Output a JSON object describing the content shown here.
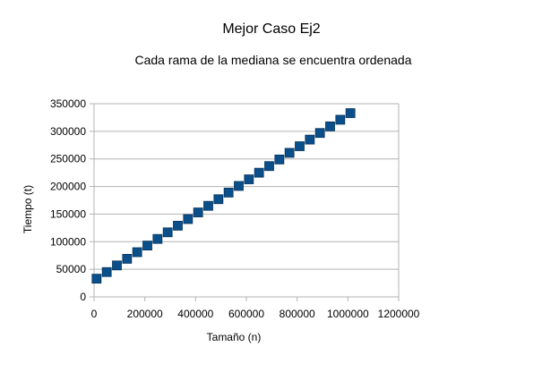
{
  "chart_data": {
    "type": "scatter",
    "title": "Mejor Caso Ej2",
    "subtitle": "Cada rama de la mediana se encuentra ordenada",
    "xlabel": "Tamaño (n)",
    "ylabel": "Tiempo (t)",
    "xlim": [
      0,
      1200000
    ],
    "ylim": [
      0,
      350000
    ],
    "x_ticks": [
      0,
      200000,
      400000,
      600000,
      800000,
      1000000,
      1200000
    ],
    "y_ticks": [
      0,
      50000,
      100000,
      150000,
      200000,
      250000,
      300000,
      350000
    ],
    "x_tick_labels": [
      "0",
      "200000",
      "400000",
      "600000",
      "800000",
      "1000000",
      "1200000"
    ],
    "y_tick_labels": [
      "0",
      "50000",
      "100000",
      "150000",
      "200000",
      "250000",
      "300000",
      "350000"
    ],
    "grid": {
      "horizontal": true,
      "vertical": false
    },
    "legend": "none",
    "series": [
      {
        "color": "#0b4f8a",
        "x": [
          10000,
          50000,
          90000,
          130000,
          170000,
          210000,
          250000,
          290000,
          330000,
          370000,
          410000,
          450000,
          490000,
          530000,
          570000,
          610000,
          650000,
          690000,
          730000,
          770000,
          810000,
          850000,
          890000,
          930000,
          970000,
          1010000
        ],
        "y": [
          33000,
          45000,
          57000,
          69000,
          81000,
          93000,
          105000,
          117000,
          129000,
          141000,
          153000,
          165000,
          177000,
          189000,
          201000,
          213000,
          225000,
          237000,
          249000,
          261000,
          273000,
          285000,
          297000,
          309000,
          321000,
          333000
        ]
      }
    ]
  }
}
